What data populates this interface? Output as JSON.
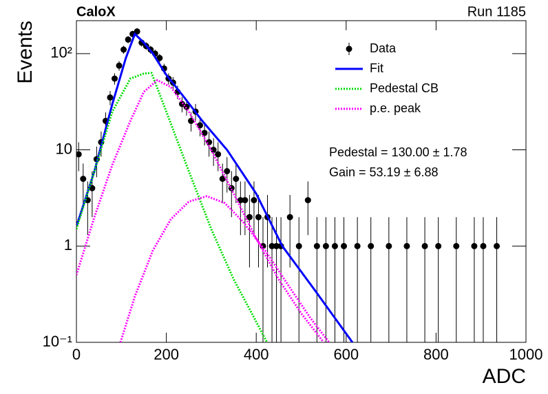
{
  "chart_data": {
    "type": "line",
    "title": "CaloX",
    "subtitle": "Run 1185",
    "x_label": "ADC",
    "y_label": "Events",
    "log_y": true,
    "xlim": [
      0,
      1000
    ],
    "ylim": [
      0.1,
      220
    ],
    "xticks": [
      0,
      200,
      400,
      600,
      800,
      1000
    ],
    "yticks": [
      {
        "value": 0.1,
        "label": "10⁻¹"
      },
      1,
      10,
      {
        "value": 100,
        "label": "10²"
      }
    ],
    "legend": "top-right",
    "annotations": [
      "Pedestal = 130.00 ± 1.78",
      "Gain = 53.19 ± 6.88"
    ],
    "series": [
      {
        "name": "Data",
        "color": "#000000",
        "style": "markers",
        "x": [
          5,
          15,
          25,
          35,
          45,
          55,
          65,
          75,
          85,
          95,
          105,
          115,
          125,
          135,
          145,
          155,
          165,
          175,
          185,
          195,
          205,
          215,
          225,
          235,
          245,
          255,
          265,
          275,
          285,
          295,
          305,
          315,
          325,
          335,
          345,
          355,
          365,
          375,
          385,
          395,
          405,
          415,
          425,
          435,
          445,
          455,
          475,
          495,
          515,
          535,
          555,
          575,
          595,
          625,
          655,
          695,
          735,
          775,
          805,
          845,
          885,
          905,
          935
        ],
        "values": [
          9,
          5,
          3,
          4,
          8,
          12,
          20,
          35,
          55,
          75,
          110,
          140,
          160,
          170,
          130,
          120,
          110,
          100,
          90,
          70,
          55,
          50,
          40,
          30,
          28,
          20,
          25,
          18,
          15,
          12,
          10,
          9,
          5,
          6,
          4,
          5,
          3,
          3,
          2,
          3,
          2,
          1,
          2,
          1,
          1,
          1,
          2,
          1,
          3,
          1,
          1,
          1,
          1,
          1,
          1,
          1,
          1,
          1,
          1,
          1,
          1,
          1,
          1
        ],
        "errors": [
          3,
          2.2,
          1.7,
          2,
          2.8,
          3.5,
          4.5,
          5.9,
          7.4,
          8.7,
          10.5,
          11.8,
          12.6,
          13,
          11.4,
          11,
          10.5,
          10,
          9.5,
          8.4,
          7.4,
          7.1,
          6.3,
          5.5,
          5.3,
          4.5,
          5,
          4.2,
          3.9,
          3.5,
          3.2,
          3,
          2.2,
          2.4,
          2,
          2.2,
          1.7,
          1.7,
          1.4,
          1.7,
          1.4,
          1,
          1.4,
          1,
          1,
          1,
          1.4,
          1,
          1.7,
          1,
          1,
          1,
          1,
          1,
          1,
          1,
          1,
          1,
          1,
          1,
          1,
          1,
          1
        ]
      },
      {
        "name": "Fit",
        "color": "#0000ff",
        "style": "solid",
        "x": [
          0,
          40,
          80,
          110,
          130,
          150,
          170,
          200,
          240,
          280,
          335,
          400,
          458,
          530,
          614
        ],
        "values": [
          1.6,
          6,
          30,
          90,
          160,
          130,
          100,
          60,
          35,
          20,
          10,
          3.5,
          1,
          0.35,
          0.1
        ]
      },
      {
        "name": "Pedestal CB",
        "color": "#00dd00",
        "style": "dotted",
        "x": [
          0,
          40,
          80,
          120,
          150,
          167,
          200,
          250,
          300,
          350,
          390,
          424
        ],
        "values": [
          1.5,
          6,
          25,
          55,
          62,
          63,
          25,
          6,
          1.5,
          0.45,
          0.2,
          0.1
        ]
      },
      {
        "name": "p.e. peak",
        "color": "#ff00ff",
        "style": "dotted",
        "x": [
          0,
          40,
          80,
          120,
          150,
          180,
          210,
          250,
          300,
          350,
          400,
          450,
          500,
          550,
          null,
          98,
          130,
          170,
          210,
          250,
          290,
          330,
          370,
          420,
          470,
          520,
          562
        ],
        "values": [
          0.5,
          2,
          7,
          20,
          40,
          53,
          45,
          25,
          10,
          3.5,
          1.2,
          0.45,
          0.2,
          0.1,
          null,
          0.1,
          0.3,
          0.9,
          1.9,
          2.9,
          3.3,
          2.8,
          1.8,
          0.9,
          0.4,
          0.18,
          0.1
        ]
      }
    ]
  }
}
